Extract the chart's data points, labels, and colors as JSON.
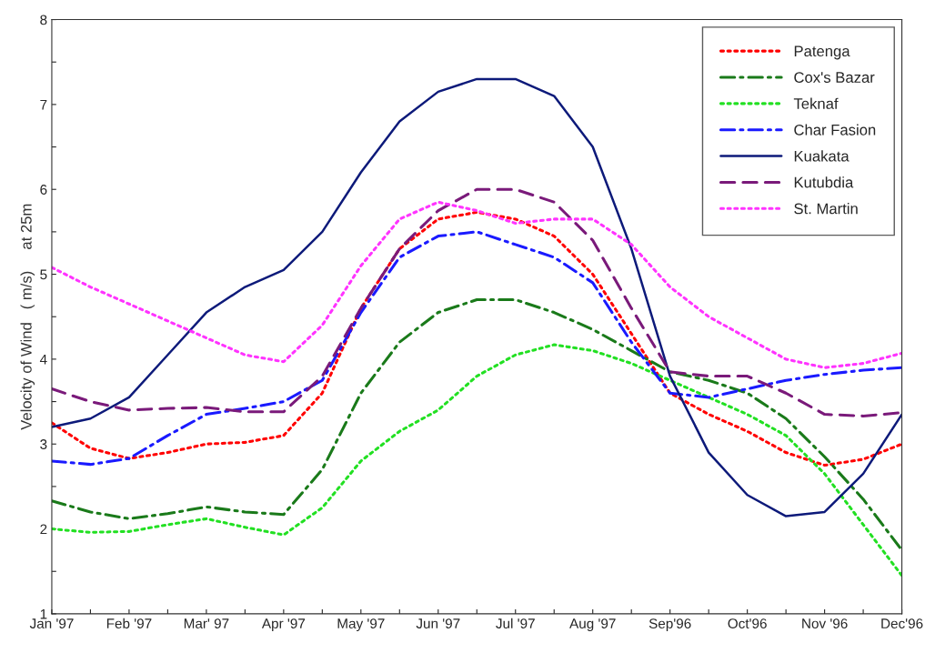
{
  "chart_data": {
    "type": "line",
    "ylabel": "Velocity of Wind   ( m/s)     at 25m",
    "categories": [
      "Jan '97",
      null,
      "Feb '97",
      null,
      "Mar' 97",
      null,
      "Apr '97",
      null,
      "May '97",
      null,
      "Jun '97",
      null,
      "Jul '97",
      null,
      "Aug '97",
      null,
      "Sep'96",
      null,
      "Oct'96",
      null,
      "Nov '96",
      null,
      "Dec'96"
    ],
    "ylim": [
      1,
      8
    ],
    "yticks": [
      1,
      {
        "value": 1.5,
        "label": null
      },
      2,
      {
        "value": 2.5,
        "label": null
      },
      3,
      {
        "value": 3.5,
        "label": null
      },
      4,
      {
        "value": 4.5,
        "label": null
      },
      5,
      {
        "value": 5.5,
        "label": null
      },
      6,
      {
        "value": 6.5,
        "label": null
      },
      7,
      {
        "value": 7.5,
        "label": null
      },
      8
    ],
    "grid": false,
    "legend": "top right",
    "marker": "none",
    "series": [
      {
        "name": "Patenga",
        "color": "#ff0000",
        "line_style": "dotted",
        "values": [
          3.25,
          2.95,
          2.83,
          2.9,
          3.0,
          3.02,
          3.1,
          3.6,
          4.6,
          5.3,
          5.65,
          5.73,
          5.65,
          5.45,
          5.0,
          4.3,
          3.6,
          3.35,
          3.15,
          2.9,
          2.75,
          2.82,
          3.0
        ]
      },
      {
        "name": "Cox's Bazar",
        "color": "#1a7a1a",
        "line_style": "dashdot",
        "values": [
          2.33,
          2.2,
          2.12,
          2.18,
          2.26,
          2.2,
          2.17,
          2.7,
          3.6,
          4.2,
          4.55,
          4.7,
          4.7,
          4.55,
          4.35,
          4.1,
          3.85,
          3.75,
          3.6,
          3.3,
          2.85,
          2.35,
          1.75
        ]
      },
      {
        "name": "Teknaf",
        "color": "#22e022",
        "line_style": "dotted",
        "values": [
          2.0,
          1.96,
          1.97,
          2.05,
          2.12,
          2.02,
          1.93,
          2.25,
          2.8,
          3.15,
          3.4,
          3.8,
          4.05,
          4.17,
          4.1,
          3.95,
          3.75,
          3.55,
          3.35,
          3.1,
          2.65,
          2.05,
          1.45
        ]
      },
      {
        "name": "Char Fasion",
        "color": "#1a1aff",
        "line_style": "dashdot",
        "values": [
          2.8,
          2.76,
          2.83,
          3.1,
          3.35,
          3.42,
          3.5,
          3.75,
          4.55,
          5.2,
          5.45,
          5.5,
          5.35,
          5.2,
          4.9,
          4.2,
          3.6,
          3.55,
          3.65,
          3.75,
          3.82,
          3.87,
          3.9
        ]
      },
      {
        "name": "Kuakata",
        "color": "#0d1a7a",
        "line_style": "solid",
        "values": [
          3.2,
          3.3,
          3.55,
          4.05,
          4.55,
          4.85,
          5.05,
          5.5,
          6.2,
          6.8,
          7.15,
          7.3,
          7.3,
          7.1,
          6.5,
          5.3,
          3.8,
          2.9,
          2.4,
          2.15,
          2.2,
          2.65,
          3.35
        ]
      },
      {
        "name": "Kutubdia",
        "color": "#7a1a7a",
        "line_style": "dashed",
        "values": [
          3.65,
          3.5,
          3.4,
          3.42,
          3.43,
          3.38,
          3.38,
          3.8,
          4.6,
          5.3,
          5.75,
          6.0,
          6.0,
          5.85,
          5.4,
          4.6,
          3.85,
          3.8,
          3.8,
          3.6,
          3.35,
          3.33,
          3.37
        ]
      },
      {
        "name": "St. Martin",
        "color": "#ff33ff",
        "line_style": "dotted",
        "values": [
          5.08,
          4.85,
          4.65,
          4.45,
          4.25,
          4.05,
          3.97,
          4.4,
          5.1,
          5.65,
          5.85,
          5.75,
          5.6,
          5.65,
          5.65,
          5.35,
          4.85,
          4.5,
          4.25,
          4.0,
          3.9,
          3.95,
          4.07
        ]
      }
    ]
  }
}
